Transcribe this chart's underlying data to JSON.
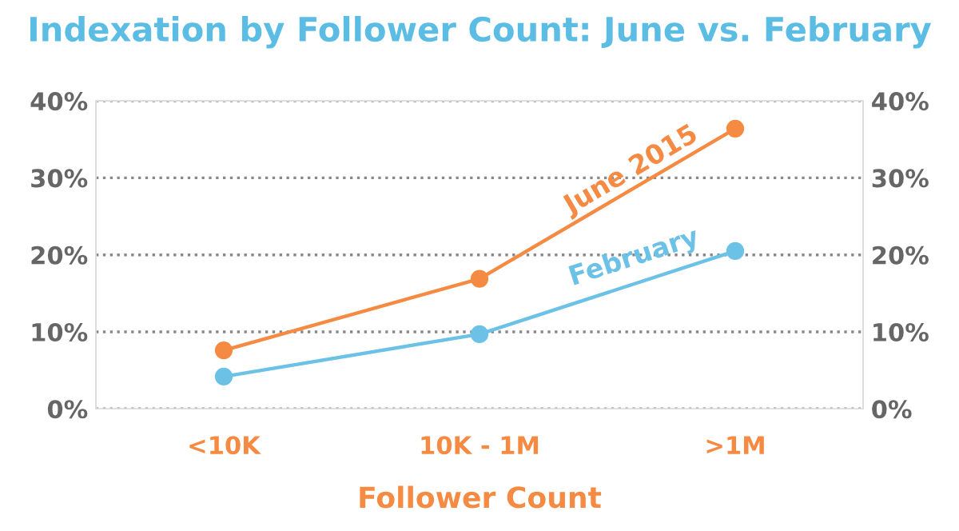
{
  "chart_data": {
    "type": "line",
    "title": "Indexation by Follower Count: June vs. February",
    "xlabel": "Follower Count",
    "categories": [
      "<10K",
      "10K - 1M",
      ">1M"
    ],
    "series": [
      {
        "name": "June 2015",
        "color": "#f58a42",
        "values": [
          7.6,
          16.9,
          36.4
        ]
      },
      {
        "name": "February",
        "color": "#6cc1e6",
        "values": [
          4.2,
          9.7,
          20.5
        ]
      }
    ],
    "ylim": [
      0,
      40
    ],
    "yticks": [
      {
        "value": 0,
        "label": "0%"
      },
      {
        "value": 10,
        "label": "10%"
      },
      {
        "value": 20,
        "label": "20%"
      },
      {
        "value": 30,
        "label": "30%"
      },
      {
        "value": 40,
        "label": "40%"
      }
    ],
    "y2lim": [
      0,
      40
    ],
    "y2ticks": [
      {
        "value": 0,
        "label": "0%"
      },
      {
        "value": 10,
        "label": "10%"
      },
      {
        "value": 20,
        "label": "20%"
      },
      {
        "value": 30,
        "label": "30%"
      },
      {
        "value": 40,
        "label": "40%"
      }
    ],
    "grid": "y",
    "legend": false,
    "marker": "circle",
    "line_style": "solid"
  }
}
